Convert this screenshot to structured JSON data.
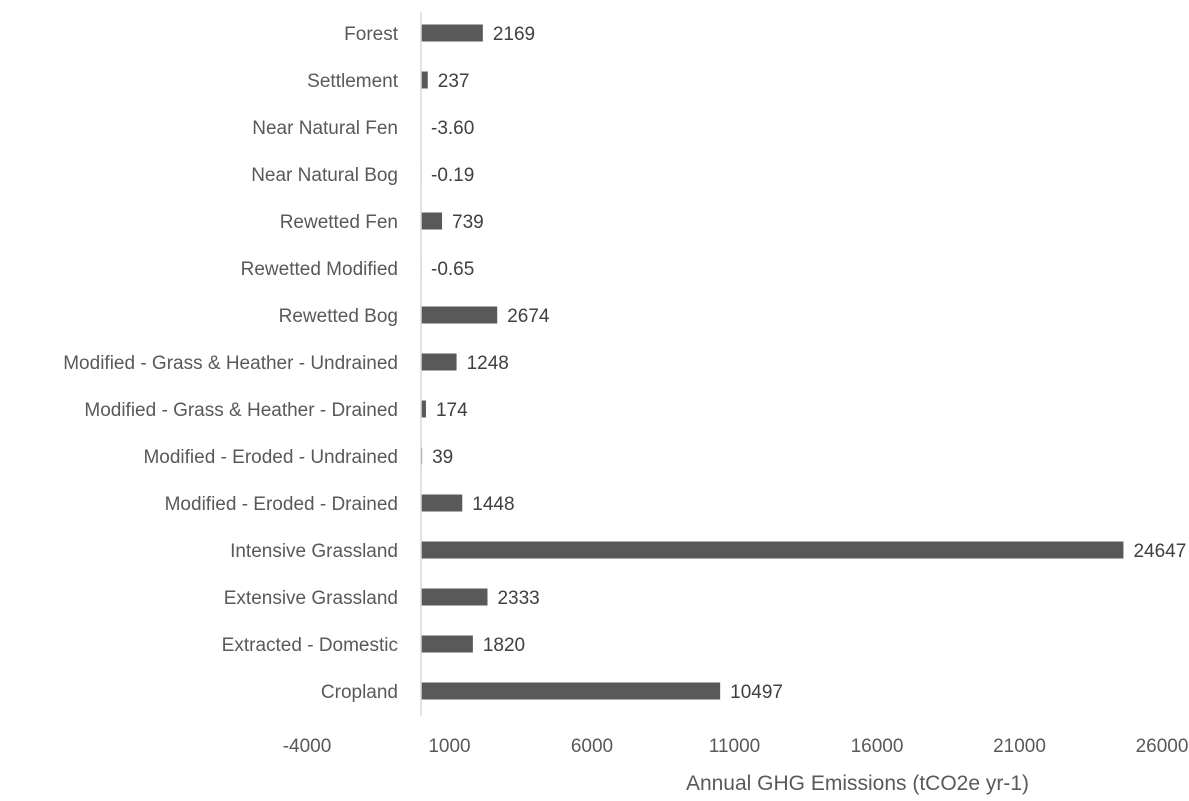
{
  "chart_data": {
    "type": "bar",
    "orientation": "horizontal",
    "title": "",
    "xlabel": "Annual GHG Emissions (tCO2e yr-1)",
    "ylabel": "",
    "categories": [
      "Forest",
      "Settlement",
      "Near Natural Fen",
      "Near Natural Bog",
      "Rewetted Fen",
      "Rewetted Modified",
      "Rewetted Bog",
      "Modified - Grass & Heather - Undrained",
      "Modified - Grass & Heather - Drained",
      "Modified - Eroded - Undrained",
      "Modified - Eroded - Drained",
      "Intensive Grassland",
      "Extensive Grassland",
      "Extracted - Domestic",
      "Cropland"
    ],
    "values": [
      2169,
      237,
      -3.6,
      -0.19,
      739,
      -0.65,
      2674,
      1248,
      174,
      39,
      1448,
      24647,
      2333,
      1820,
      10497
    ],
    "value_labels": [
      "2169",
      "237",
      "-3.60",
      "-0.19",
      "739",
      "-0.65",
      "2674",
      "1248",
      "174",
      "39",
      "1448",
      "24647",
      "2333",
      "1820",
      "10497"
    ],
    "xticks": [
      -4000,
      1000,
      6000,
      11000,
      16000,
      21000,
      26000
    ],
    "xtick_labels": [
      "-4000",
      "1000",
      "6000",
      "11000",
      "16000",
      "21000",
      "26000"
    ],
    "xlim": [
      -4000,
      26000
    ],
    "grid": false,
    "legend": "none",
    "bar_color": "#595959"
  }
}
